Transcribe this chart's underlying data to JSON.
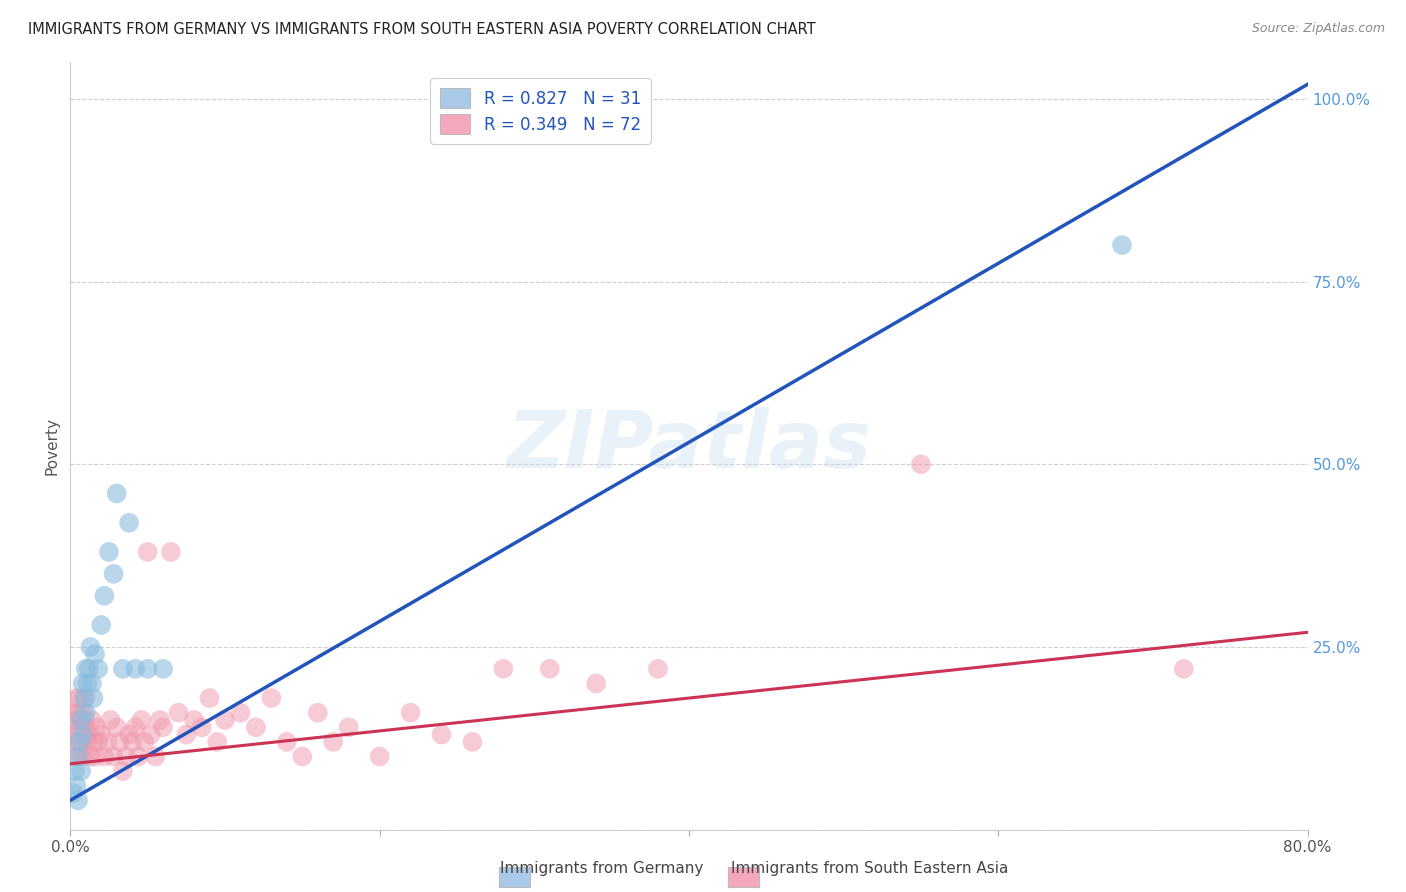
{
  "title": "IMMIGRANTS FROM GERMANY VS IMMIGRANTS FROM SOUTH EASTERN ASIA POVERTY CORRELATION CHART",
  "source": "Source: ZipAtlas.com",
  "ylabel": "Poverty",
  "background_color": "#ffffff",
  "watermark_text": "ZIPatlas",
  "legend_label1": "R = 0.827   N = 31",
  "legend_label2": "R = 0.349   N = 72",
  "legend_color1": "#aac8e8",
  "legend_color2": "#f5a8bc",
  "scatter_color1": "#8bbcde",
  "scatter_color2": "#f098ac",
  "line_color1": "#2255bb",
  "line_color2": "#cc3355",
  "footer_label1": "Immigrants from Germany",
  "footer_label2": "Immigrants from South Eastern Asia",
  "germany_x": [
    0.002,
    0.003,
    0.004,
    0.005,
    0.005,
    0.006,
    0.007,
    0.007,
    0.008,
    0.008,
    0.009,
    0.01,
    0.01,
    0.011,
    0.012,
    0.013,
    0.014,
    0.015,
    0.016,
    0.018,
    0.02,
    0.022,
    0.025,
    0.028,
    0.03,
    0.034,
    0.038,
    0.042,
    0.05,
    0.06,
    0.68
  ],
  "germany_y": [
    0.05,
    0.08,
    0.06,
    0.04,
    0.1,
    0.12,
    0.15,
    0.08,
    0.13,
    0.2,
    0.18,
    0.16,
    0.22,
    0.2,
    0.22,
    0.25,
    0.2,
    0.18,
    0.24,
    0.22,
    0.28,
    0.32,
    0.38,
    0.35,
    0.46,
    0.22,
    0.42,
    0.22,
    0.22,
    0.22,
    0.8
  ],
  "sea_x": [
    0.001,
    0.002,
    0.003,
    0.003,
    0.004,
    0.004,
    0.005,
    0.005,
    0.006,
    0.006,
    0.007,
    0.007,
    0.008,
    0.008,
    0.009,
    0.009,
    0.01,
    0.01,
    0.011,
    0.012,
    0.013,
    0.014,
    0.015,
    0.016,
    0.017,
    0.018,
    0.02,
    0.022,
    0.024,
    0.026,
    0.028,
    0.03,
    0.032,
    0.034,
    0.036,
    0.038,
    0.04,
    0.042,
    0.044,
    0.046,
    0.048,
    0.05,
    0.052,
    0.055,
    0.058,
    0.06,
    0.065,
    0.07,
    0.075,
    0.08,
    0.085,
    0.09,
    0.095,
    0.1,
    0.11,
    0.12,
    0.13,
    0.14,
    0.15,
    0.16,
    0.17,
    0.18,
    0.2,
    0.22,
    0.24,
    0.26,
    0.28,
    0.31,
    0.34,
    0.38,
    0.55,
    0.72
  ],
  "sea_y": [
    0.15,
    0.12,
    0.16,
    0.1,
    0.14,
    0.18,
    0.13,
    0.16,
    0.12,
    0.18,
    0.14,
    0.1,
    0.16,
    0.12,
    0.15,
    0.1,
    0.14,
    0.18,
    0.12,
    0.13,
    0.1,
    0.15,
    0.12,
    0.1,
    0.14,
    0.12,
    0.13,
    0.1,
    0.12,
    0.15,
    0.1,
    0.14,
    0.12,
    0.08,
    0.1,
    0.13,
    0.12,
    0.14,
    0.1,
    0.15,
    0.12,
    0.38,
    0.13,
    0.1,
    0.15,
    0.14,
    0.38,
    0.16,
    0.13,
    0.15,
    0.14,
    0.18,
    0.12,
    0.15,
    0.16,
    0.14,
    0.18,
    0.12,
    0.1,
    0.16,
    0.12,
    0.14,
    0.1,
    0.16,
    0.13,
    0.12,
    0.22,
    0.22,
    0.2,
    0.22,
    0.5,
    0.22
  ],
  "xlim": [
    0.0,
    0.8
  ],
  "ylim": [
    0.0,
    1.05
  ],
  "xtick_positions": [
    0.0,
    0.2,
    0.4,
    0.6,
    0.8
  ],
  "xtick_labels": [
    "0.0%",
    "",
    "",
    "",
    "80.0%"
  ],
  "ytick_positions": [
    0.0,
    0.25,
    0.5,
    0.75,
    1.0
  ],
  "ytick_labels": [
    "",
    "25.0%",
    "50.0%",
    "75.0%",
    "100.0%"
  ],
  "blue_line_x": [
    0.0,
    0.8
  ],
  "blue_line_y": [
    0.04,
    1.02
  ],
  "pink_line_x": [
    0.0,
    0.8
  ],
  "pink_line_y": [
    0.09,
    0.27
  ]
}
